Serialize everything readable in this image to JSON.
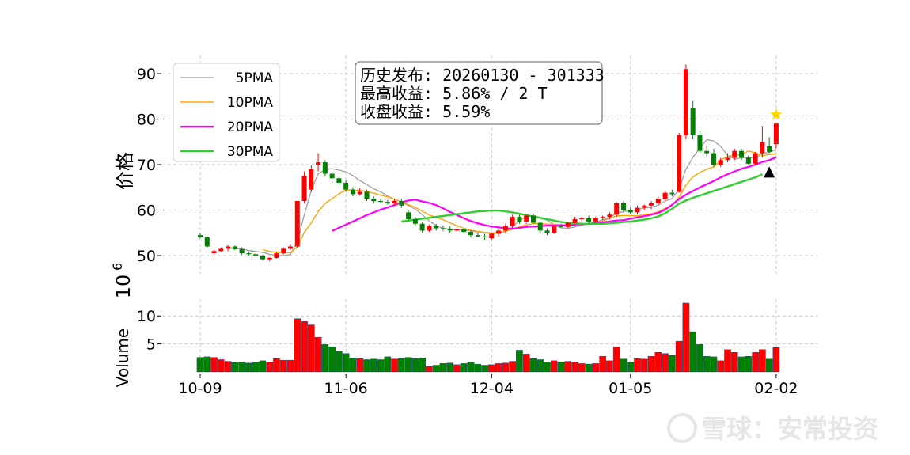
{
  "chart_data": {
    "type": "candlestick",
    "x_tick_labels": [
      "10-09",
      "11-06",
      "12-04",
      "01-05",
      "02-02"
    ],
    "ylabel": "价格",
    "y_ticks": [
      50,
      60,
      70,
      80,
      90
    ],
    "ylim": [
      46,
      94
    ],
    "volume": {
      "ylabel": "Volume",
      "scale_label": "10^6",
      "scale_base": "10",
      "scale_exp": "6",
      "y_ticks": [
        5,
        10
      ],
      "ylim": [
        0,
        13
      ]
    },
    "legend": {
      "placement": "top-left",
      "entries": [
        {
          "name": "5PMA",
          "color": "#a0a0a0"
        },
        {
          "name": "10PMA",
          "color": "#ffa500"
        },
        {
          "name": "20PMA",
          "color": "#ff00ff"
        },
        {
          "name": "30PMA",
          "color": "#32cd32"
        }
      ]
    },
    "annotation": {
      "line1": "历史发布: 20260130 - 301333",
      "line2": "最高收益: 5.86% / 2 T",
      "line3": "收盘收益: 5.59%"
    },
    "colors": {
      "up": "#ff0000",
      "down": "#008000"
    },
    "grid": true,
    "tick_positions": [
      0,
      21,
      42,
      62,
      83
    ],
    "candles": [
      [
        54.5,
        55.0,
        53.8,
        54.0,
        2.6
      ],
      [
        54.0,
        54.2,
        51.8,
        52.0,
        2.7
      ],
      [
        50.5,
        51.2,
        50.2,
        51.0,
        2.6
      ],
      [
        51.0,
        51.8,
        50.8,
        51.5,
        2.2
      ],
      [
        51.5,
        52.4,
        51.0,
        52.0,
        1.9
      ],
      [
        52.0,
        52.2,
        51.2,
        51.4,
        1.7
      ],
      [
        51.4,
        51.8,
        50.2,
        50.5,
        1.8
      ],
      [
        50.5,
        50.8,
        50.0,
        50.3,
        1.6
      ],
      [
        50.3,
        50.5,
        49.8,
        50.0,
        1.7
      ],
      [
        50.0,
        50.2,
        49.0,
        49.2,
        2.0
      ],
      [
        49.2,
        49.6,
        48.8,
        49.5,
        1.8
      ],
      [
        49.5,
        50.8,
        49.3,
        50.5,
        2.4
      ],
      [
        50.5,
        51.8,
        50.3,
        51.5,
        2.1
      ],
      [
        51.5,
        52.5,
        51.2,
        52.0,
        2.1
      ],
      [
        52.0,
        62.0,
        51.8,
        62.0,
        9.5
      ],
      [
        62.0,
        68.5,
        61.5,
        67.5,
        9.0
      ],
      [
        64.5,
        70.0,
        64.0,
        69.0,
        8.4
      ],
      [
        70.0,
        72.5,
        68.5,
        70.5,
        6.2
      ],
      [
        70.5,
        71.0,
        67.5,
        68.0,
        4.9
      ],
      [
        68.0,
        68.5,
        66.0,
        67.0,
        4.5
      ],
      [
        67.0,
        67.5,
        65.5,
        66.0,
        3.7
      ],
      [
        66.0,
        66.5,
        64.0,
        64.5,
        3.3
      ],
      [
        64.5,
        65.0,
        63.0,
        63.5,
        2.5
      ],
      [
        63.5,
        64.8,
        63.2,
        64.0,
        2.4
      ],
      [
        64.0,
        64.5,
        62.0,
        62.5,
        2.2
      ],
      [
        62.5,
        63.0,
        61.5,
        62.0,
        2.3
      ],
      [
        62.0,
        62.4,
        61.5,
        61.8,
        2.2
      ],
      [
        61.8,
        62.2,
        61.2,
        61.5,
        2.7
      ],
      [
        61.5,
        62.5,
        61.0,
        62.0,
        2.3
      ],
      [
        62.0,
        62.5,
        60.5,
        61.0,
        2.4
      ],
      [
        59.5,
        60.0,
        57.5,
        58.0,
        2.6
      ],
      [
        58.0,
        58.5,
        56.5,
        57.0,
        2.4
      ],
      [
        57.0,
        57.5,
        55.0,
        55.5,
        2.5
      ],
      [
        55.5,
        56.8,
        55.2,
        56.5,
        1.0
      ],
      [
        56.5,
        57.0,
        55.5,
        56.0,
        1.2
      ],
      [
        56.0,
        56.6,
        55.4,
        55.8,
        1.5
      ],
      [
        55.8,
        56.4,
        55.0,
        55.5,
        1.6
      ],
      [
        55.5,
        56.2,
        55.0,
        55.8,
        1.3
      ],
      [
        55.8,
        56.0,
        54.8,
        55.2,
        1.5
      ],
      [
        55.2,
        55.5,
        54.0,
        54.5,
        1.7
      ],
      [
        54.5,
        55.0,
        54.0,
        54.2,
        1.4
      ],
      [
        54.2,
        54.8,
        53.5,
        54.0,
        1.2
      ],
      [
        53.8,
        55.0,
        53.5,
        54.8,
        1.3
      ],
      [
        54.8,
        56.0,
        54.2,
        55.5,
        1.5
      ],
      [
        55.5,
        57.0,
        55.0,
        56.5,
        1.6
      ],
      [
        56.5,
        59.0,
        56.0,
        58.5,
        1.9
      ],
      [
        58.5,
        59.0,
        57.0,
        57.5,
        3.9
      ],
      [
        57.5,
        59.0,
        57.0,
        58.8,
        3.2
      ],
      [
        58.8,
        59.2,
        57.0,
        57.2,
        2.4
      ],
      [
        57.2,
        57.5,
        55.0,
        55.5,
        2.2
      ],
      [
        55.5,
        56.0,
        54.5,
        55.0,
        1.8
      ],
      [
        55.0,
        56.8,
        54.8,
        56.5,
        2.0
      ],
      [
        56.5,
        57.0,
        56.0,
        56.3,
        1.8
      ],
      [
        56.3,
        57.5,
        56.0,
        57.2,
        1.9
      ],
      [
        57.2,
        58.5,
        57.0,
        58.0,
        1.7
      ],
      [
        58.0,
        58.5,
        57.5,
        58.2,
        1.5
      ],
      [
        58.2,
        58.8,
        57.0,
        57.5,
        1.4
      ],
      [
        57.5,
        58.5,
        57.2,
        58.2,
        1.5
      ],
      [
        58.2,
        58.8,
        57.8,
        58.5,
        2.8
      ],
      [
        58.5,
        59.5,
        58.0,
        59.0,
        2.0
      ],
      [
        59.0,
        61.8,
        58.5,
        61.5,
        4.5
      ],
      [
        61.5,
        62.0,
        59.5,
        60.0,
        2.3
      ],
      [
        60.0,
        60.5,
        59.2,
        59.5,
        1.8
      ],
      [
        59.5,
        61.0,
        59.0,
        60.5,
        2.4
      ],
      [
        60.5,
        61.2,
        60.0,
        61.0,
        2.3
      ],
      [
        61.0,
        62.0,
        60.2,
        61.5,
        2.8
      ],
      [
        61.5,
        63.0,
        61.0,
        62.5,
        3.5
      ],
      [
        62.5,
        64.2,
        62.0,
        63.8,
        3.3
      ],
      [
        63.8,
        64.5,
        63.0,
        63.5,
        3.0
      ],
      [
        64.0,
        77.0,
        63.8,
        76.5,
        5.5
      ],
      [
        76.5,
        92.0,
        75.5,
        91.0,
        12.3
      ],
      [
        82.5,
        84.0,
        75.5,
        76.5,
        7.2
      ],
      [
        76.5,
        77.5,
        72.5,
        73.0,
        4.9
      ],
      [
        73.0,
        74.0,
        71.8,
        72.5,
        2.8
      ],
      [
        72.5,
        73.5,
        69.5,
        70.0,
        2.7
      ],
      [
        70.0,
        71.5,
        69.5,
        71.0,
        2.0
      ],
      [
        71.0,
        72.5,
        70.5,
        71.5,
        4.0
      ],
      [
        71.5,
        73.5,
        71.0,
        73.0,
        3.5
      ],
      [
        73.0,
        73.5,
        71.0,
        71.5,
        2.7
      ],
      [
        71.5,
        72.0,
        70.0,
        70.2,
        2.8
      ],
      [
        70.2,
        72.8,
        70.0,
        72.5,
        3.5
      ],
      [
        72.5,
        78.5,
        71.5,
        75.0,
        4.0
      ],
      [
        74.0,
        76.0,
        72.5,
        72.8,
        2.3
      ],
      [
        74.5,
        79.0,
        73.5,
        79.0,
        4.4
      ]
    ],
    "ma5": [
      null,
      null,
      null,
      null,
      51.8,
      51.5,
      51.5,
      51.1,
      50.9,
      50.7,
      50.3,
      50.0,
      50.0,
      50.2,
      53.1,
      58.9,
      64.3,
      68.0,
      68.9,
      69.1,
      68.8,
      68.4,
      67.6,
      66.5,
      65.6,
      64.7,
      64.0,
      63.1,
      62.4,
      61.8,
      61.0,
      60.2,
      59.0,
      57.6,
      56.6,
      56.0,
      55.8,
      55.6,
      55.6,
      55.4,
      55.2,
      55.0,
      54.9,
      54.9,
      55.3,
      56.3,
      57.7,
      58.6,
      58.6,
      58.3,
      57.8,
      56.8,
      56.1,
      56.0,
      56.3,
      56.7,
      57.0,
      57.3,
      57.9,
      58.4,
      59.2,
      59.7,
      59.8,
      60.1,
      60.5,
      60.6,
      61.1,
      62.0,
      62.5,
      64.5,
      69.0,
      71.6,
      73.6,
      75.5,
      75.2,
      74.0,
      72.0,
      71.2,
      71.5,
      71.6,
      71.3,
      72.5,
      72.7,
      73.3
    ],
    "ma10": [
      null,
      null,
      null,
      null,
      null,
      null,
      null,
      null,
      null,
      51.3,
      50.9,
      50.8,
      50.6,
      50.6,
      51.9,
      55.1,
      57.2,
      59.7,
      61.5,
      62.5,
      63.6,
      64.4,
      64.4,
      64.3,
      64.1,
      63.7,
      63.3,
      62.9,
      62.4,
      61.8,
      61.2,
      60.6,
      59.8,
      58.9,
      58.4,
      57.9,
      57.2,
      56.6,
      56.0,
      55.6,
      55.3,
      55.1,
      55.0,
      55.1,
      55.3,
      55.8,
      56.3,
      56.8,
      57.0,
      57.1,
      56.9,
      56.9,
      56.8,
      56.9,
      56.9,
      56.9,
      56.9,
      57.2,
      57.6,
      58.2,
      58.7,
      58.8,
      58.8,
      58.7,
      59.1,
      59.2,
      59.6,
      60.4,
      61.0,
      62.8,
      65.5,
      67.3,
      68.3,
      69.0,
      69.5,
      71.0,
      71.8,
      72.0,
      72.2,
      73.0,
      72.6,
      72.0,
      72.2,
      72.4
    ],
    "ma20": [
      null,
      null,
      null,
      null,
      null,
      null,
      null,
      null,
      null,
      null,
      null,
      null,
      null,
      null,
      null,
      null,
      null,
      null,
      null,
      55.4,
      56.1,
      56.8,
      57.5,
      58.2,
      58.9,
      59.5,
      60.1,
      60.6,
      61.1,
      61.7,
      62.1,
      62.3,
      61.9,
      61.6,
      61.1,
      60.4,
      59.6,
      58.9,
      58.2,
      57.6,
      57.1,
      56.7,
      56.4,
      56.2,
      56.0,
      55.9,
      56.1,
      56.3,
      56.4,
      56.5,
      56.6,
      56.6,
      56.6,
      56.6,
      56.8,
      56.9,
      57.0,
      57.2,
      57.3,
      57.5,
      57.7,
      57.8,
      58.1,
      58.4,
      58.7,
      59.0,
      59.4,
      60.1,
      61.2,
      62.4,
      63.4,
      64.2,
      65.0,
      65.7,
      66.4,
      67.2,
      67.9,
      68.5,
      69.1,
      69.5,
      70.0,
      70.6,
      71.0,
      71.6
    ],
    "ma30": [
      null,
      null,
      null,
      null,
      null,
      null,
      null,
      null,
      null,
      null,
      null,
      null,
      null,
      null,
      null,
      null,
      null,
      null,
      null,
      null,
      null,
      null,
      null,
      null,
      null,
      null,
      null,
      null,
      null,
      57.5,
      57.7,
      57.9,
      58.1,
      58.3,
      58.5,
      58.7,
      58.9,
      59.1,
      59.3,
      59.5,
      59.7,
      59.8,
      59.9,
      59.9,
      59.7,
      59.5,
      59.2,
      58.9,
      58.6,
      58.3,
      58.0,
      57.7,
      57.4,
      57.2,
      57.1,
      57.0,
      57.0,
      57.0,
      57.0,
      57.1,
      57.2,
      57.4,
      57.5,
      57.7,
      57.9,
      58.2,
      58.6,
      59.3,
      60.3,
      61.4,
      62.1,
      62.7,
      63.2,
      63.7,
      64.2,
      64.7,
      65.2,
      65.7,
      66.2,
      66.7,
      67.2,
      67.9
    ],
    "marker_triangle": {
      "index": 82,
      "value": 68.2,
      "color": "#000000"
    },
    "marker_star": {
      "index": 83,
      "value": 81.0,
      "color": "#ffd700"
    }
  },
  "watermark": {
    "text": "雪球：安常投资"
  }
}
